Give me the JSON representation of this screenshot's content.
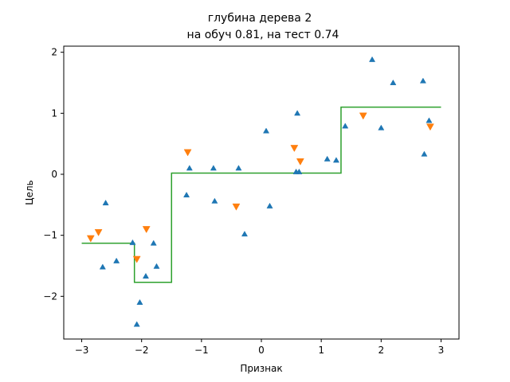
{
  "chart_data": {
    "type": "scatter",
    "title_line1": "глубина дерева 2",
    "title_line2": "на обуч 0.81, на тест 0.74",
    "xlabel": "Признак",
    "ylabel": "Цель",
    "xlim": [
      -3.3,
      3.3
    ],
    "ylim": [
      -2.7,
      2.1
    ],
    "x_ticks": [
      -3,
      -2,
      -1,
      0,
      1,
      2,
      3
    ],
    "x_tick_labels": [
      "−3",
      "−2",
      "−1",
      "0",
      "1",
      "2",
      "3"
    ],
    "y_ticks": [
      -2,
      -1,
      0,
      1,
      2
    ],
    "y_tick_labels": [
      "−2",
      "−1",
      "0",
      "1",
      "2"
    ],
    "colors": {
      "train": "#1f77b4",
      "test": "#ff7f0e",
      "prediction": "#2ca02c"
    },
    "train_points": [
      [
        -2.6,
        -0.47
      ],
      [
        -2.65,
        -1.52
      ],
      [
        -2.42,
        -1.42
      ],
      [
        -2.15,
        -1.12
      ],
      [
        -2.03,
        -2.1
      ],
      [
        -2.08,
        -2.46
      ],
      [
        -1.93,
        -1.67
      ],
      [
        -1.8,
        -1.13
      ],
      [
        -1.75,
        -1.51
      ],
      [
        -1.25,
        -0.34
      ],
      [
        -1.2,
        0.1
      ],
      [
        -0.8,
        0.1
      ],
      [
        -0.78,
        -0.44
      ],
      [
        -0.38,
        0.1
      ],
      [
        -0.28,
        -0.98
      ],
      [
        0.08,
        0.71
      ],
      [
        0.14,
        -0.52
      ],
      [
        0.58,
        0.04
      ],
      [
        0.6,
        1.0
      ],
      [
        0.63,
        0.04
      ],
      [
        1.1,
        0.25
      ],
      [
        1.25,
        0.23
      ],
      [
        1.4,
        0.79
      ],
      [
        1.85,
        1.88
      ],
      [
        2.0,
        0.76
      ],
      [
        2.2,
        1.5
      ],
      [
        2.7,
        1.53
      ],
      [
        2.72,
        0.33
      ],
      [
        2.8,
        0.88
      ]
    ],
    "test_points": [
      [
        -2.85,
        -1.05
      ],
      [
        -2.72,
        -0.95
      ],
      [
        -2.08,
        -1.39
      ],
      [
        -1.92,
        -0.9
      ],
      [
        -1.23,
        0.36
      ],
      [
        -0.42,
        -0.53
      ],
      [
        0.55,
        0.43
      ],
      [
        0.65,
        0.21
      ],
      [
        1.7,
        0.96
      ],
      [
        2.82,
        0.78
      ]
    ],
    "prediction_steps": [
      [
        -3.0,
        -1.13
      ],
      [
        -2.12,
        -1.13
      ],
      [
        -2.12,
        -1.77
      ],
      [
        -1.5,
        -1.77
      ],
      [
        -1.5,
        0.02
      ],
      [
        1.33,
        0.02
      ],
      [
        1.33,
        1.1
      ],
      [
        3.0,
        1.1
      ]
    ]
  }
}
